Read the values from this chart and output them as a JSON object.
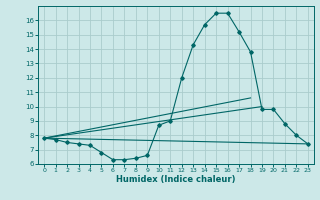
{
  "xlabel": "Humidex (Indice chaleur)",
  "bg_color": "#cce8e8",
  "grid_color": "#aacccc",
  "line_color": "#006666",
  "xlim": [
    -0.5,
    23.5
  ],
  "ylim": [
    6,
    17
  ],
  "yticks": [
    6,
    7,
    8,
    9,
    10,
    11,
    12,
    13,
    14,
    15,
    16
  ],
  "xticks": [
    0,
    1,
    2,
    3,
    4,
    5,
    6,
    7,
    8,
    9,
    10,
    11,
    12,
    13,
    14,
    15,
    16,
    17,
    18,
    19,
    20,
    21,
    22,
    23
  ],
  "line1_x": [
    0,
    1,
    2,
    3,
    4,
    5,
    6,
    7,
    8,
    9,
    10,
    11,
    12,
    13,
    14,
    15,
    16,
    17,
    18,
    19,
    20,
    21,
    22,
    23
  ],
  "line1_y": [
    7.8,
    7.7,
    7.5,
    7.4,
    7.3,
    6.8,
    6.3,
    6.3,
    6.4,
    6.6,
    8.7,
    9.0,
    12.0,
    14.3,
    15.7,
    16.5,
    16.5,
    15.2,
    13.8,
    9.8,
    9.8,
    8.8,
    8.0,
    7.4
  ],
  "line2_x": [
    0,
    23
  ],
  "line2_y": [
    7.8,
    7.4
  ],
  "line3_x": [
    0,
    19
  ],
  "line3_y": [
    7.8,
    10.0
  ],
  "line4_x": [
    0,
    18
  ],
  "line4_y": [
    7.8,
    10.6
  ]
}
